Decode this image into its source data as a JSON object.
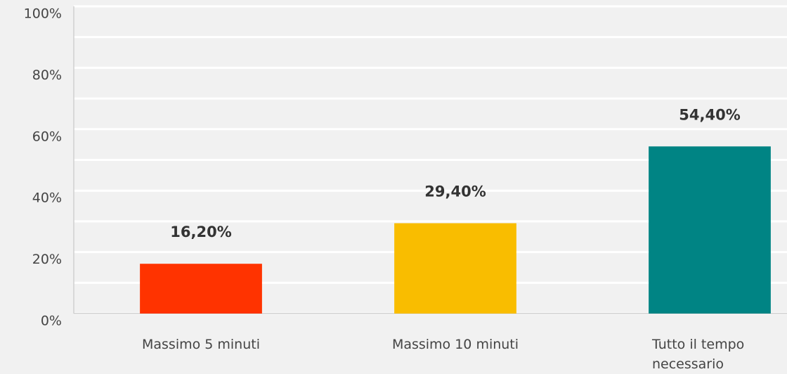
{
  "chart_data": {
    "type": "bar",
    "categories": [
      "Massimo 5 minuti",
      "Massimo 10 minuti",
      "Tutto il tempo necessario"
    ],
    "values": [
      16.2,
      29.4,
      54.4
    ],
    "value_labels": [
      "16,20%",
      "29,40%",
      "54,40%"
    ],
    "colors": [
      "#ff3300",
      "#f9bd00",
      "#008484"
    ],
    "ylim": [
      0,
      100
    ],
    "yticks": [
      {
        "value": 0,
        "label": "0%"
      },
      {
        "value": 20,
        "label": "20%"
      },
      {
        "value": 40,
        "label": "40%"
      },
      {
        "value": 60,
        "label": "60%"
      },
      {
        "value": 80,
        "label": "80%"
      },
      {
        "value": 100,
        "label": "100%"
      }
    ],
    "minor_yticks": [
      10,
      30,
      50,
      70,
      90
    ],
    "grid": true
  }
}
